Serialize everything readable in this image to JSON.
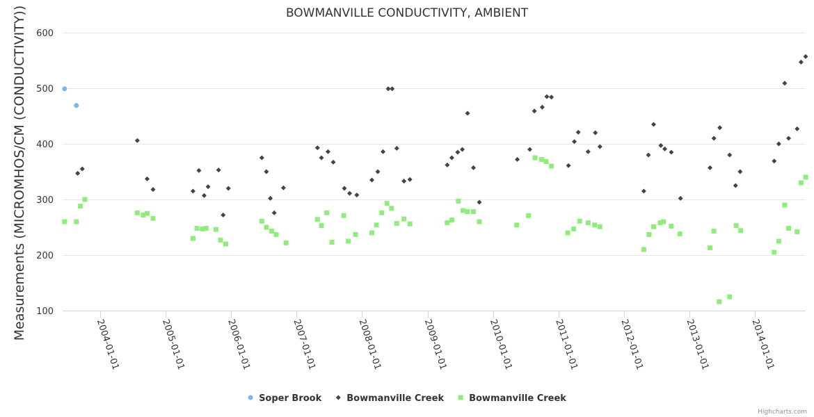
{
  "chart_data": {
    "type": "scatter",
    "title": "BOWMANVILLE CONDUCTIVITY, AMBIENT",
    "xlabel": "",
    "ylabel": "Measurements (MICROMHOS/CM (CONDUCTIVITY))",
    "ylim": [
      100,
      600
    ],
    "yticks": [
      100,
      200,
      300,
      400,
      500,
      600
    ],
    "xlim": [
      2003.43,
      2014.77
    ],
    "xticks": [
      {
        "label": "2004-01-01",
        "value": 2004.0
      },
      {
        "label": "2005-01-01",
        "value": 2005.0
      },
      {
        "label": "2006-01-01",
        "value": 2006.0
      },
      {
        "label": "2007-01-01",
        "value": 2007.0
      },
      {
        "label": "2008-01-01",
        "value": 2008.0
      },
      {
        "label": "2009-01-01",
        "value": 2009.0
      },
      {
        "label": "2010-01-01",
        "value": 2010.0
      },
      {
        "label": "2011-01-01",
        "value": 2011.0
      },
      {
        "label": "2012-01-01",
        "value": 2012.0
      },
      {
        "label": "2013-01-01",
        "value": 2013.0
      },
      {
        "label": "2014-01-01",
        "value": 2014.0
      }
    ],
    "grid": true,
    "legend_position": "bottom",
    "series": [
      {
        "name": "Soper Brook",
        "color": "#7cb5ec",
        "marker": "circle",
        "points": [
          [
            2003.46,
            499
          ],
          [
            2003.64,
            469
          ]
        ]
      },
      {
        "name": "Bowmanville Creek",
        "color": "#434348",
        "marker": "diamond",
        "points": [
          [
            2003.66,
            347
          ],
          [
            2003.73,
            355
          ],
          [
            2004.57,
            406
          ],
          [
            2004.72,
            337
          ],
          [
            2004.81,
            318
          ],
          [
            2005.42,
            315
          ],
          [
            2005.51,
            352
          ],
          [
            2005.59,
            307
          ],
          [
            2005.65,
            323
          ],
          [
            2005.81,
            353
          ],
          [
            2005.88,
            272
          ],
          [
            2005.96,
            320
          ],
          [
            2006.47,
            375
          ],
          [
            2006.54,
            350
          ],
          [
            2006.6,
            302
          ],
          [
            2006.66,
            276
          ],
          [
            2006.8,
            321
          ],
          [
            2007.32,
            393
          ],
          [
            2007.38,
            375
          ],
          [
            2007.48,
            386
          ],
          [
            2007.56,
            367
          ],
          [
            2007.73,
            320
          ],
          [
            2007.81,
            311
          ],
          [
            2007.92,
            308
          ],
          [
            2008.15,
            335
          ],
          [
            2008.24,
            350
          ],
          [
            2008.32,
            386
          ],
          [
            2008.4,
            499
          ],
          [
            2008.46,
            499
          ],
          [
            2008.53,
            392
          ],
          [
            2008.64,
            333
          ],
          [
            2008.73,
            336
          ],
          [
            2009.3,
            362
          ],
          [
            2009.37,
            375
          ],
          [
            2009.46,
            385
          ],
          [
            2009.53,
            390
          ],
          [
            2009.61,
            455
          ],
          [
            2009.7,
            357
          ],
          [
            2009.79,
            295
          ],
          [
            2010.37,
            372
          ],
          [
            2010.56,
            390
          ],
          [
            2010.63,
            459
          ],
          [
            2010.75,
            466
          ],
          [
            2010.82,
            485
          ],
          [
            2010.89,
            484
          ],
          [
            2011.15,
            361
          ],
          [
            2011.24,
            404
          ],
          [
            2011.3,
            421
          ],
          [
            2011.45,
            386
          ],
          [
            2011.56,
            420
          ],
          [
            2011.63,
            395
          ],
          [
            2012.3,
            315
          ],
          [
            2012.37,
            380
          ],
          [
            2012.45,
            435
          ],
          [
            2012.56,
            397
          ],
          [
            2012.62,
            391
          ],
          [
            2012.72,
            385
          ],
          [
            2012.86,
            302
          ],
          [
            2013.31,
            357
          ],
          [
            2013.37,
            410
          ],
          [
            2013.46,
            429
          ],
          [
            2013.61,
            380
          ],
          [
            2013.7,
            325
          ],
          [
            2013.77,
            350
          ],
          [
            2014.29,
            369
          ],
          [
            2014.36,
            400
          ],
          [
            2014.45,
            509
          ],
          [
            2014.51,
            410
          ],
          [
            2014.64,
            427
          ],
          [
            2014.7,
            547
          ],
          [
            2014.77,
            557
          ]
        ]
      },
      {
        "name": "Bowmanville Creek",
        "color": "#90ed7d",
        "marker": "square",
        "points": [
          [
            2003.46,
            260
          ],
          [
            2003.64,
            260
          ],
          [
            2003.7,
            288
          ],
          [
            2003.77,
            300
          ],
          [
            2004.57,
            276
          ],
          [
            2004.66,
            272
          ],
          [
            2004.72,
            275
          ],
          [
            2004.81,
            266
          ],
          [
            2005.42,
            230
          ],
          [
            2005.48,
            248
          ],
          [
            2005.56,
            247
          ],
          [
            2005.62,
            248
          ],
          [
            2005.77,
            246
          ],
          [
            2005.84,
            227
          ],
          [
            2005.92,
            220
          ],
          [
            2006.47,
            261
          ],
          [
            2006.54,
            250
          ],
          [
            2006.62,
            243
          ],
          [
            2006.69,
            237
          ],
          [
            2006.84,
            222
          ],
          [
            2007.32,
            264
          ],
          [
            2007.38,
            253
          ],
          [
            2007.46,
            276
          ],
          [
            2007.54,
            223
          ],
          [
            2007.72,
            271
          ],
          [
            2007.79,
            225
          ],
          [
            2007.9,
            237
          ],
          [
            2008.15,
            240
          ],
          [
            2008.22,
            254
          ],
          [
            2008.3,
            276
          ],
          [
            2008.38,
            293
          ],
          [
            2008.45,
            284
          ],
          [
            2008.53,
            257
          ],
          [
            2008.64,
            265
          ],
          [
            2008.73,
            256
          ],
          [
            2009.3,
            258
          ],
          [
            2009.37,
            263
          ],
          [
            2009.47,
            297
          ],
          [
            2009.54,
            280
          ],
          [
            2009.61,
            278
          ],
          [
            2009.7,
            278
          ],
          [
            2009.79,
            260
          ],
          [
            2010.36,
            254
          ],
          [
            2010.54,
            271
          ],
          [
            2010.64,
            375
          ],
          [
            2010.74,
            372
          ],
          [
            2010.81,
            368
          ],
          [
            2010.89,
            360
          ],
          [
            2011.14,
            240
          ],
          [
            2011.23,
            247
          ],
          [
            2011.32,
            261
          ],
          [
            2011.45,
            258
          ],
          [
            2011.55,
            254
          ],
          [
            2011.63,
            251
          ],
          [
            2012.3,
            210
          ],
          [
            2012.38,
            237
          ],
          [
            2012.45,
            251
          ],
          [
            2012.55,
            258
          ],
          [
            2012.6,
            260
          ],
          [
            2012.72,
            252
          ],
          [
            2012.85,
            238
          ],
          [
            2013.31,
            213
          ],
          [
            2013.37,
            243
          ],
          [
            2013.45,
            116
          ],
          [
            2013.61,
            125
          ],
          [
            2013.71,
            253
          ],
          [
            2013.78,
            244
          ],
          [
            2014.29,
            205
          ],
          [
            2014.36,
            225
          ],
          [
            2014.45,
            290
          ],
          [
            2014.51,
            248
          ],
          [
            2014.64,
            242
          ],
          [
            2014.7,
            330
          ],
          [
            2014.77,
            340
          ]
        ]
      }
    ]
  },
  "credits": "Highcharts.com"
}
